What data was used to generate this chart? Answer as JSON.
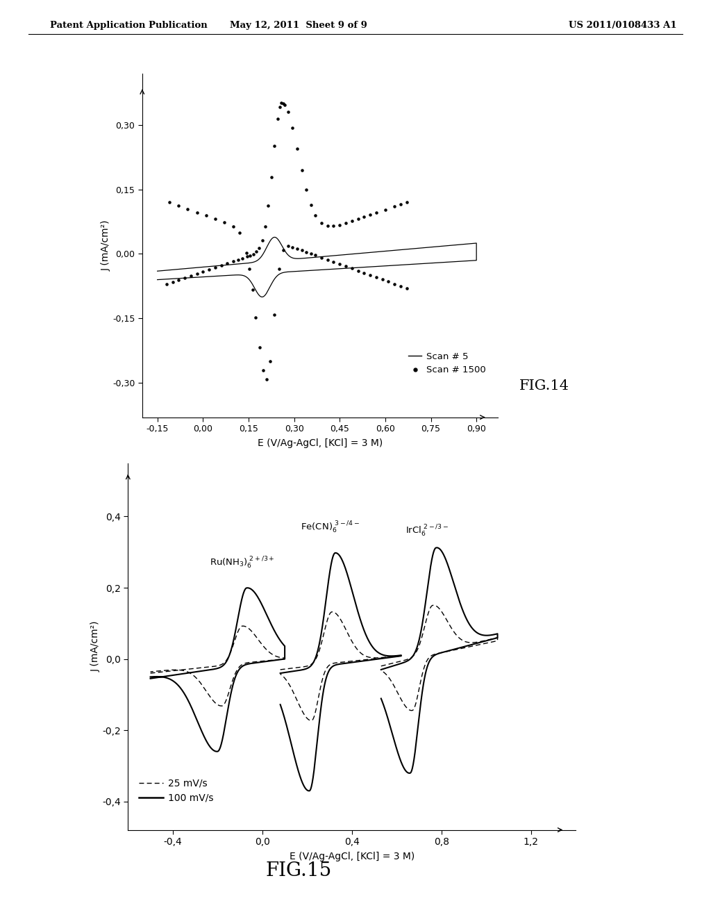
{
  "fig14": {
    "xlabel": "E (V/Ag-AgCl, [KCl] = 3 M)",
    "ylabel": "J (mA/cm²)",
    "xlim": [
      -0.2,
      0.97
    ],
    "ylim": [
      -0.38,
      0.42
    ],
    "xticks": [
      -0.15,
      0.0,
      0.15,
      0.3,
      0.45,
      0.6,
      0.75,
      0.9
    ],
    "yticks": [
      -0.3,
      -0.15,
      0.0,
      0.15,
      0.3
    ],
    "fig_label": "FIG.14",
    "legend": [
      "Scan # 5",
      "Scan # 1500"
    ]
  },
  "fig15": {
    "xlabel": "E (V/Ag-AgCl, [KCl] = 3 M)",
    "ylabel": "J (mA/cm²)",
    "xlim": [
      -0.6,
      1.4
    ],
    "ylim": [
      -0.48,
      0.55
    ],
    "xticks": [
      -0.4,
      0.0,
      0.4,
      0.8,
      1.2
    ],
    "yticks": [
      -0.4,
      -0.2,
      0.0,
      0.2,
      0.4
    ],
    "fig_label": "FIG.15",
    "legend": [
      "25 mV/s",
      "100 mV/s"
    ]
  },
  "header_left": "Patent Application Publication",
  "header_center": "May 12, 2011  Sheet 9 of 9",
  "header_right": "US 2011/0108433 A1"
}
